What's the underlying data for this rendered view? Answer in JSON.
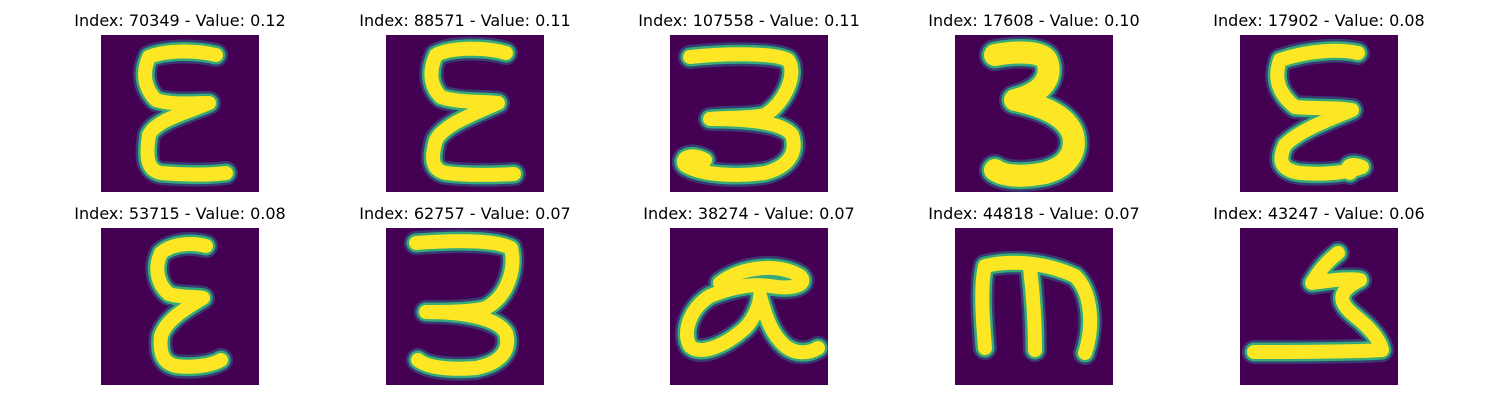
{
  "colors": {
    "background": "#440154",
    "stroke_core": "#fde725",
    "stroke_edge": "#35b779",
    "stroke_halo": "#31688e"
  },
  "panels": [
    {
      "title": "Index: 70349 - Value: 0.12",
      "glyph": "epsilon-handwritten-1"
    },
    {
      "title": "Index: 88571 - Value: 0.11",
      "glyph": "epsilon-handwritten-2"
    },
    {
      "title": "Index: 107558 - Value: 0.11",
      "glyph": "three-handwritten-1"
    },
    {
      "title": "Index: 17608 - Value: 0.10",
      "glyph": "three-handwritten-bold"
    },
    {
      "title": "Index: 17902 - Value: 0.08",
      "glyph": "epsilon-handwritten-3"
    },
    {
      "title": "Index: 53715 - Value: 0.08",
      "glyph": "epsilon-handwritten-thin"
    },
    {
      "title": "Index: 62757 - Value: 0.07",
      "glyph": "three-handwritten-2"
    },
    {
      "title": "Index: 38274 - Value: 0.07",
      "glyph": "alpha-like-glyph"
    },
    {
      "title": "Index: 44818 - Value: 0.07",
      "glyph": "m-like-glyph"
    },
    {
      "title": "Index: 43247 - Value: 0.06",
      "glyph": "reversed-s-glyph"
    }
  ]
}
